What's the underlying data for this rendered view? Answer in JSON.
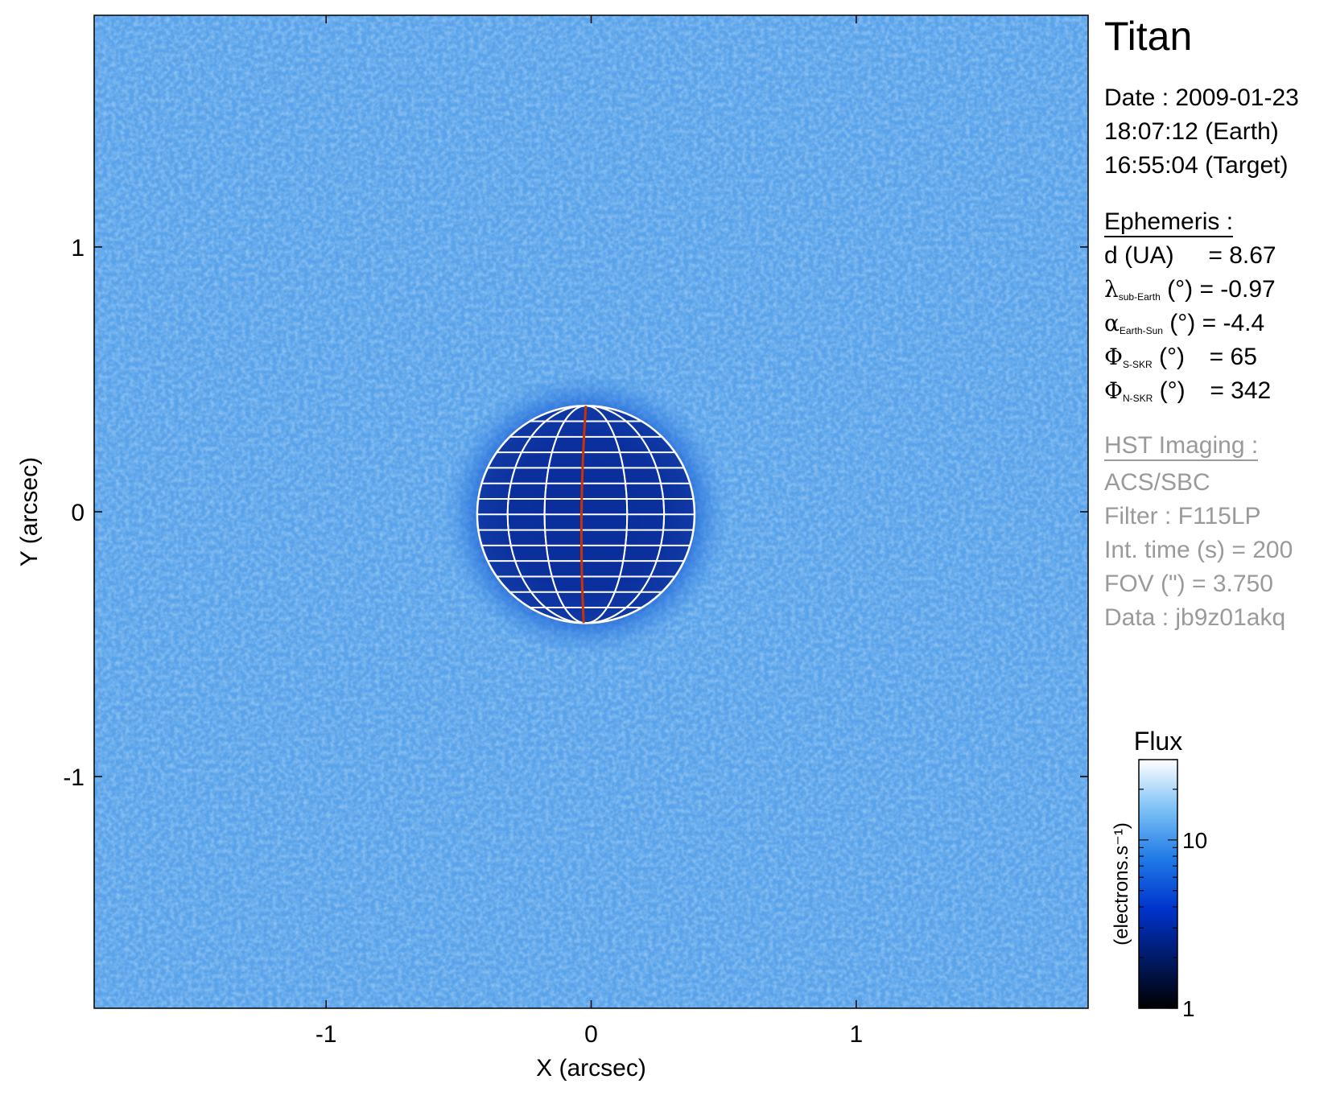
{
  "panel": {
    "title": "Titan",
    "date_line": "Date : 2009-01-23",
    "earth_time": "18:07:12 (Earth)",
    "target_time": "16:55:04 (Target)",
    "ephemeris_header": "Ephemeris :",
    "eph": [
      {
        "sym": "",
        "sub": "",
        "label": "d (UA)",
        "value": "= 8.67"
      },
      {
        "sym": "λ",
        "sub": "sub-Earth",
        "label": "(°)",
        "value": "= -0.97"
      },
      {
        "sym": "α",
        "sub": "Earth-Sun",
        "label": "(°)",
        "value": "= -4.4"
      },
      {
        "sym": "Φ",
        "sub": "S-SKR",
        "label": "(°)",
        "value": "= 65"
      },
      {
        "sym": "Φ",
        "sub": "N-SKR",
        "label": "(°)",
        "value": "= 342"
      }
    ],
    "hst_header": "HST Imaging :",
    "hst": [
      "ACS/SBC",
      "Filter : F115LP",
      "Int. time (s) = 200",
      "FOV (\") = 3.750",
      "Data : jb9z01akq"
    ]
  },
  "chart_data": {
    "type": "heatmap",
    "xlabel": "X (arcsec)",
    "ylabel": "Y (arcsec)",
    "xlim": [
      -1.875,
      1.875
    ],
    "ylim": [
      -1.875,
      1.875
    ],
    "xticks": [
      -1,
      0,
      1
    ],
    "yticks": [
      -1,
      0,
      1
    ],
    "xtick_labels": [
      "-1",
      "0",
      "1"
    ],
    "ytick_labels": [
      "-1",
      "0",
      "1"
    ],
    "disk": {
      "center": [
        -0.02,
        -0.01
      ],
      "radius": 0.41
    },
    "central_meridian_color": "#cc3300",
    "grid_color": "#ffffff",
    "colorbar": {
      "title": "Flux",
      "label": "(electrons.s⁻¹)",
      "scale": "log",
      "range": [
        1,
        30
      ],
      "ticks": [
        1,
        10
      ],
      "tick_labels": [
        "1",
        "10"
      ],
      "colors": [
        "#000000",
        "#001a66",
        "#0033cc",
        "#1f7ae6",
        "#7cc0f5",
        "#ffffff"
      ]
    }
  }
}
